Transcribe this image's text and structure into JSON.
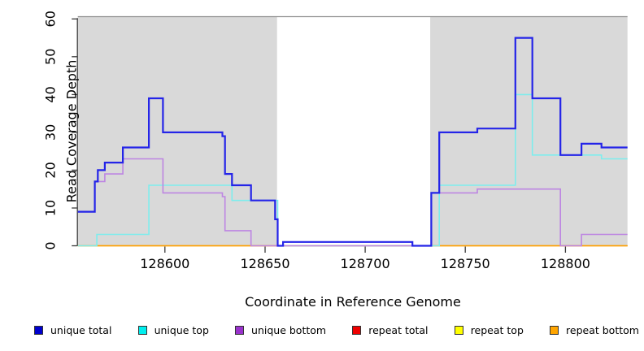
{
  "chart_data": {
    "type": "line",
    "subtype": "step",
    "title": "",
    "xlabel": "Coordinate in Reference Genome",
    "ylabel": "Read Coverage Depth",
    "xlim": [
      128556.5,
      128831
    ],
    "ylim": [
      0,
      60
    ],
    "x_ticks": [
      "128600",
      "128650",
      "128700",
      "128750",
      "128800"
    ],
    "x_tick_values": [
      128600,
      128650,
      128700,
      128750,
      128800
    ],
    "y_ticks": [
      "0",
      "10",
      "20",
      "30",
      "40",
      "50",
      "60"
    ],
    "y_tick_values": [
      0,
      10,
      20,
      30,
      40,
      50,
      60
    ],
    "grid": false,
    "background_color": "#ffffff",
    "shaded_regions": [
      {
        "x0": 128556.5,
        "x1": 128656,
        "color": "#d9d9d9"
      },
      {
        "x0": 128732.5,
        "x1": 128831,
        "color": "#d9d9d9"
      }
    ],
    "frame_top_color": "#8f8f8f",
    "axis_color": "#3a3a3a",
    "series": [
      {
        "name": "repeat total",
        "color": "#dd3355",
        "width": 1.2,
        "points": [
          [
            128556.5,
            0
          ],
          [
            128831,
            0
          ]
        ]
      },
      {
        "name": "repeat top",
        "color": "#ffff00",
        "width": 1.2,
        "points": [
          [
            128556.5,
            0
          ],
          [
            128831,
            0
          ]
        ]
      },
      {
        "name": "repeat bottom",
        "color": "#ff9f00",
        "width": 1.6,
        "points": [
          [
            128556.5,
            0
          ],
          [
            128831,
            0
          ]
        ]
      },
      {
        "name": "unique top",
        "color": "#7deded",
        "width": 1.6,
        "points": [
          [
            128556.5,
            0
          ],
          [
            128566,
            3
          ],
          [
            128592,
            16
          ],
          [
            128633.5,
            12
          ],
          [
            128656.3,
            0
          ],
          [
            128737,
            16
          ],
          [
            128775,
            40
          ],
          [
            128783.5,
            24
          ],
          [
            128818,
            23
          ],
          [
            128831,
            23
          ]
        ]
      },
      {
        "name": "unique bottom",
        "color": "#bd85e2",
        "width": 1.6,
        "points": [
          [
            128556.5,
            9
          ],
          [
            128565,
            17
          ],
          [
            128570,
            19
          ],
          [
            128579,
            23
          ],
          [
            128599,
            14
          ],
          [
            128628.7,
            13
          ],
          [
            128630,
            4
          ],
          [
            128643,
            0
          ],
          [
            128733,
            14
          ],
          [
            128756,
            15
          ],
          [
            128797.5,
            0
          ],
          [
            128808,
            3
          ],
          [
            128831,
            3
          ]
        ]
      },
      {
        "name": "unique total",
        "color": "#2424e8",
        "width": 2.2,
        "points": [
          [
            128556.5,
            9
          ],
          [
            128565,
            17
          ],
          [
            128566.5,
            20
          ],
          [
            128570,
            22
          ],
          [
            128579,
            26
          ],
          [
            128592,
            39
          ],
          [
            128599,
            30
          ],
          [
            128628.7,
            29
          ],
          [
            128630,
            19
          ],
          [
            128633.5,
            16
          ],
          [
            128643,
            12
          ],
          [
            128655,
            7
          ],
          [
            128656.3,
            0
          ],
          [
            128659,
            1
          ],
          [
            128723.6,
            0
          ],
          [
            128733,
            14
          ],
          [
            128737,
            30
          ],
          [
            128756,
            31
          ],
          [
            128775,
            55
          ],
          [
            128783.5,
            39
          ],
          [
            128797.5,
            24
          ],
          [
            128808,
            27
          ],
          [
            128818,
            26
          ],
          [
            128831,
            26
          ]
        ]
      }
    ],
    "legend": {
      "position": "bottom",
      "items": [
        {
          "label": "unique total",
          "color": "#0000cd"
        },
        {
          "label": "unique top",
          "color": "#00eeee"
        },
        {
          "label": "unique bottom",
          "color": "#9932cc"
        },
        {
          "label": "repeat total",
          "color": "#ee0000"
        },
        {
          "label": "repeat top",
          "color": "#ffff00"
        },
        {
          "label": "repeat bottom",
          "color": "#ffa500"
        }
      ]
    }
  }
}
